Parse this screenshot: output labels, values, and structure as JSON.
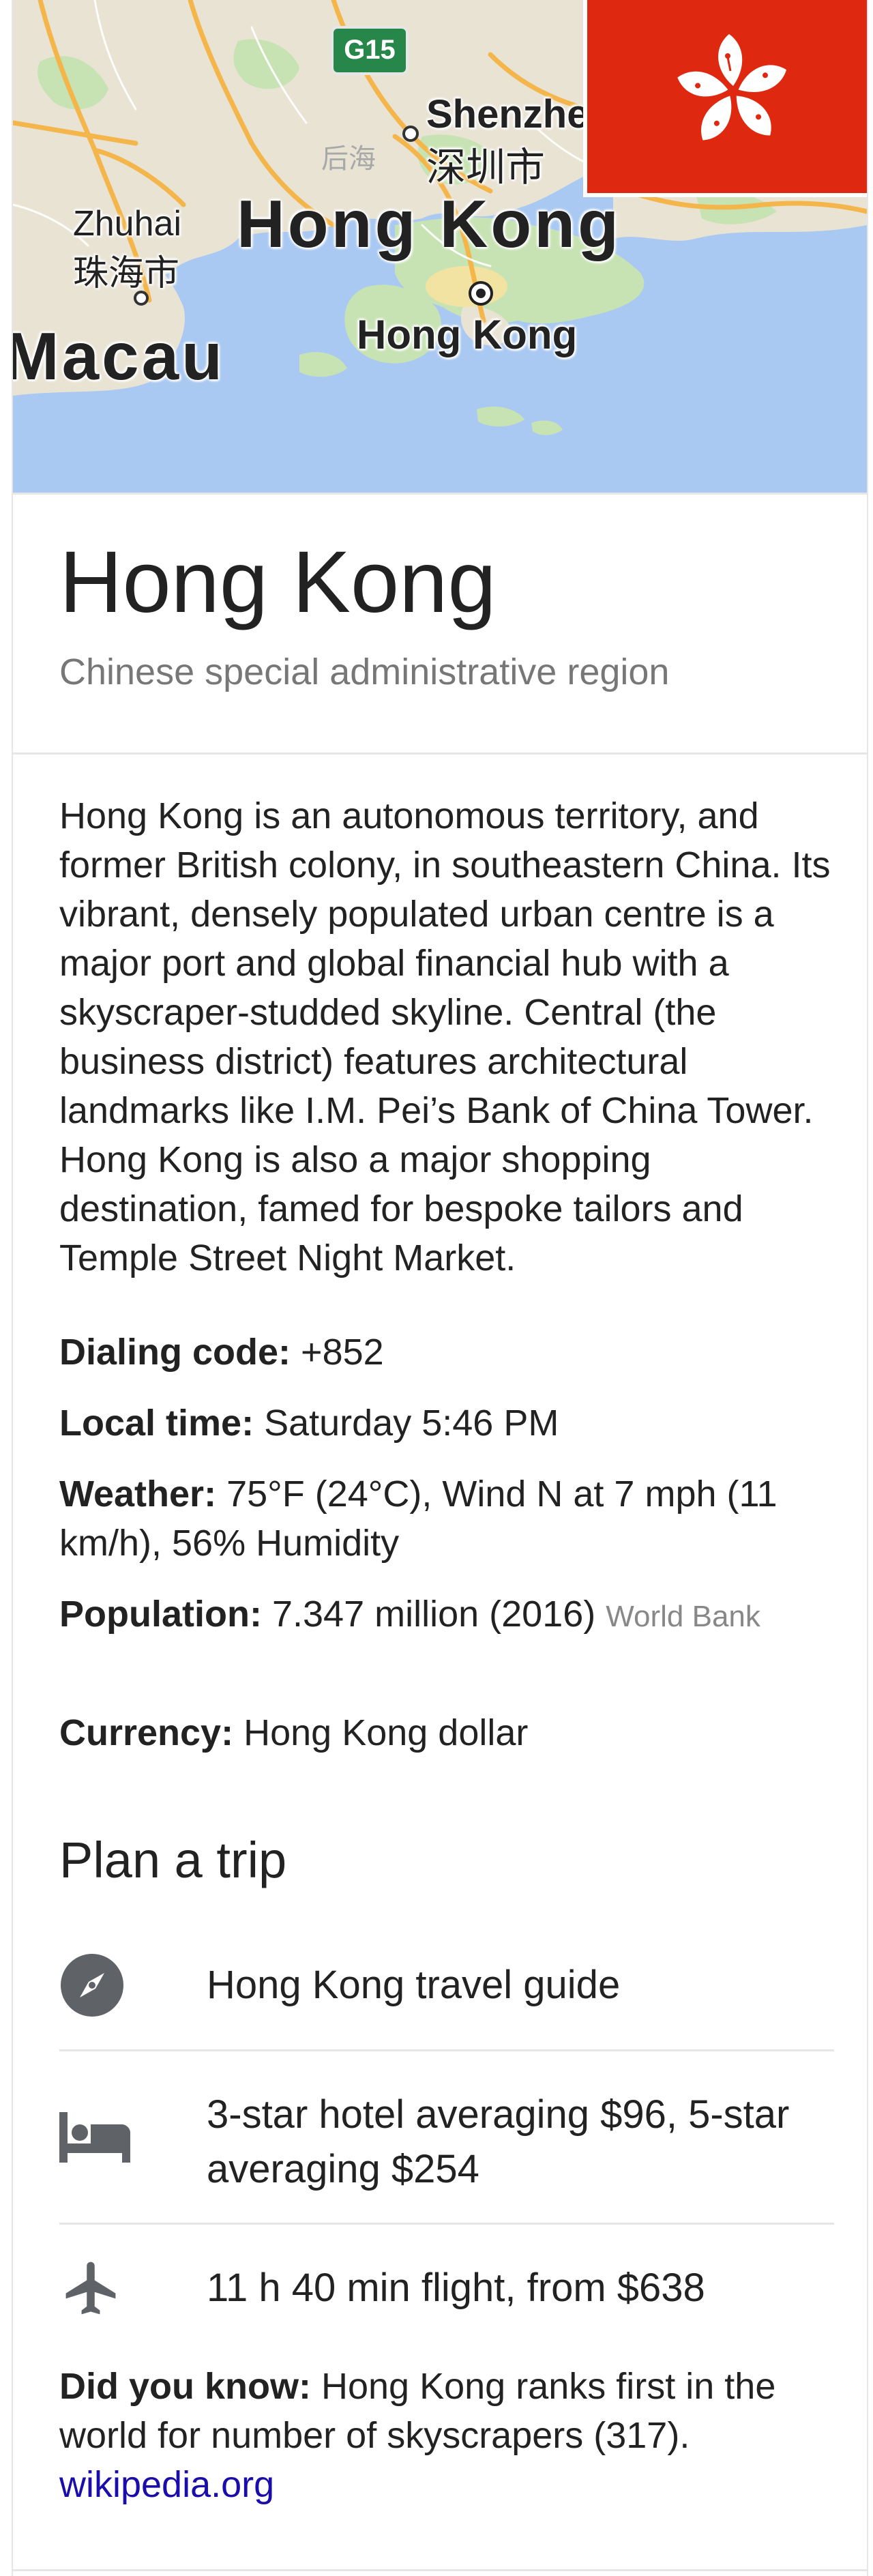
{
  "map": {
    "highway_shield": "G15",
    "labels": {
      "shenzhen_en": "Shenzhe",
      "shenzhen_zh": "深圳市",
      "houhai": "后海",
      "zhuhai_en": "Zhuhai",
      "zhuhai_zh": "珠海市",
      "hong_kong_region": "Hong Kong",
      "macau": "Macau",
      "hong_kong_city": "Hong Kong"
    },
    "colors": {
      "water": "#a9c9f2",
      "land": "#e9e3d4",
      "green": "#c7e3b4",
      "road": "#f4b54a",
      "flag_red": "#de2910"
    }
  },
  "header": {
    "title": "Hong Kong",
    "subtitle": "Chinese special administrative region"
  },
  "description": "Hong Kong is an autonomous territory, and former British colony, in southeastern China. Its vibrant, densely populated urban centre is a major port and global financial hub with a skyscraper-studded skyline. Central (the business district) features architectural landmarks like I.M. Pei’s Bank of China Tower. Hong Kong is also a major shopping destination, famed for bespoke tailors and Temple Street Night Market.",
  "facts": {
    "dialing_label": "Dialing code:",
    "dialing_value": "+852",
    "time_label": "Local time:",
    "time_value": "Saturday 5:46 PM",
    "weather_label": "Weather:",
    "weather_value": "75°F (24°C), Wind N at 7 mph (11 km/h), 56% Humidity",
    "population_label": "Population:",
    "population_value": "7.347 million (2016)",
    "population_source": "World Bank",
    "currency_label": "Currency:",
    "currency_value": "Hong Kong dollar"
  },
  "trip": {
    "title": "Plan a trip",
    "items": [
      {
        "icon": "compass-icon",
        "text": "Hong Kong travel guide"
      },
      {
        "icon": "bed-icon",
        "text": "3-star hotel averaging $96, 5-star averaging $254"
      },
      {
        "icon": "airplane-icon",
        "text": "11 h 40 min flight, from $638"
      }
    ]
  },
  "did_you_know": {
    "label": "Did you know:",
    "text": "Hong Kong ranks first in the world for number of skyscrapers (317).",
    "link": "wikipedia.org"
  }
}
